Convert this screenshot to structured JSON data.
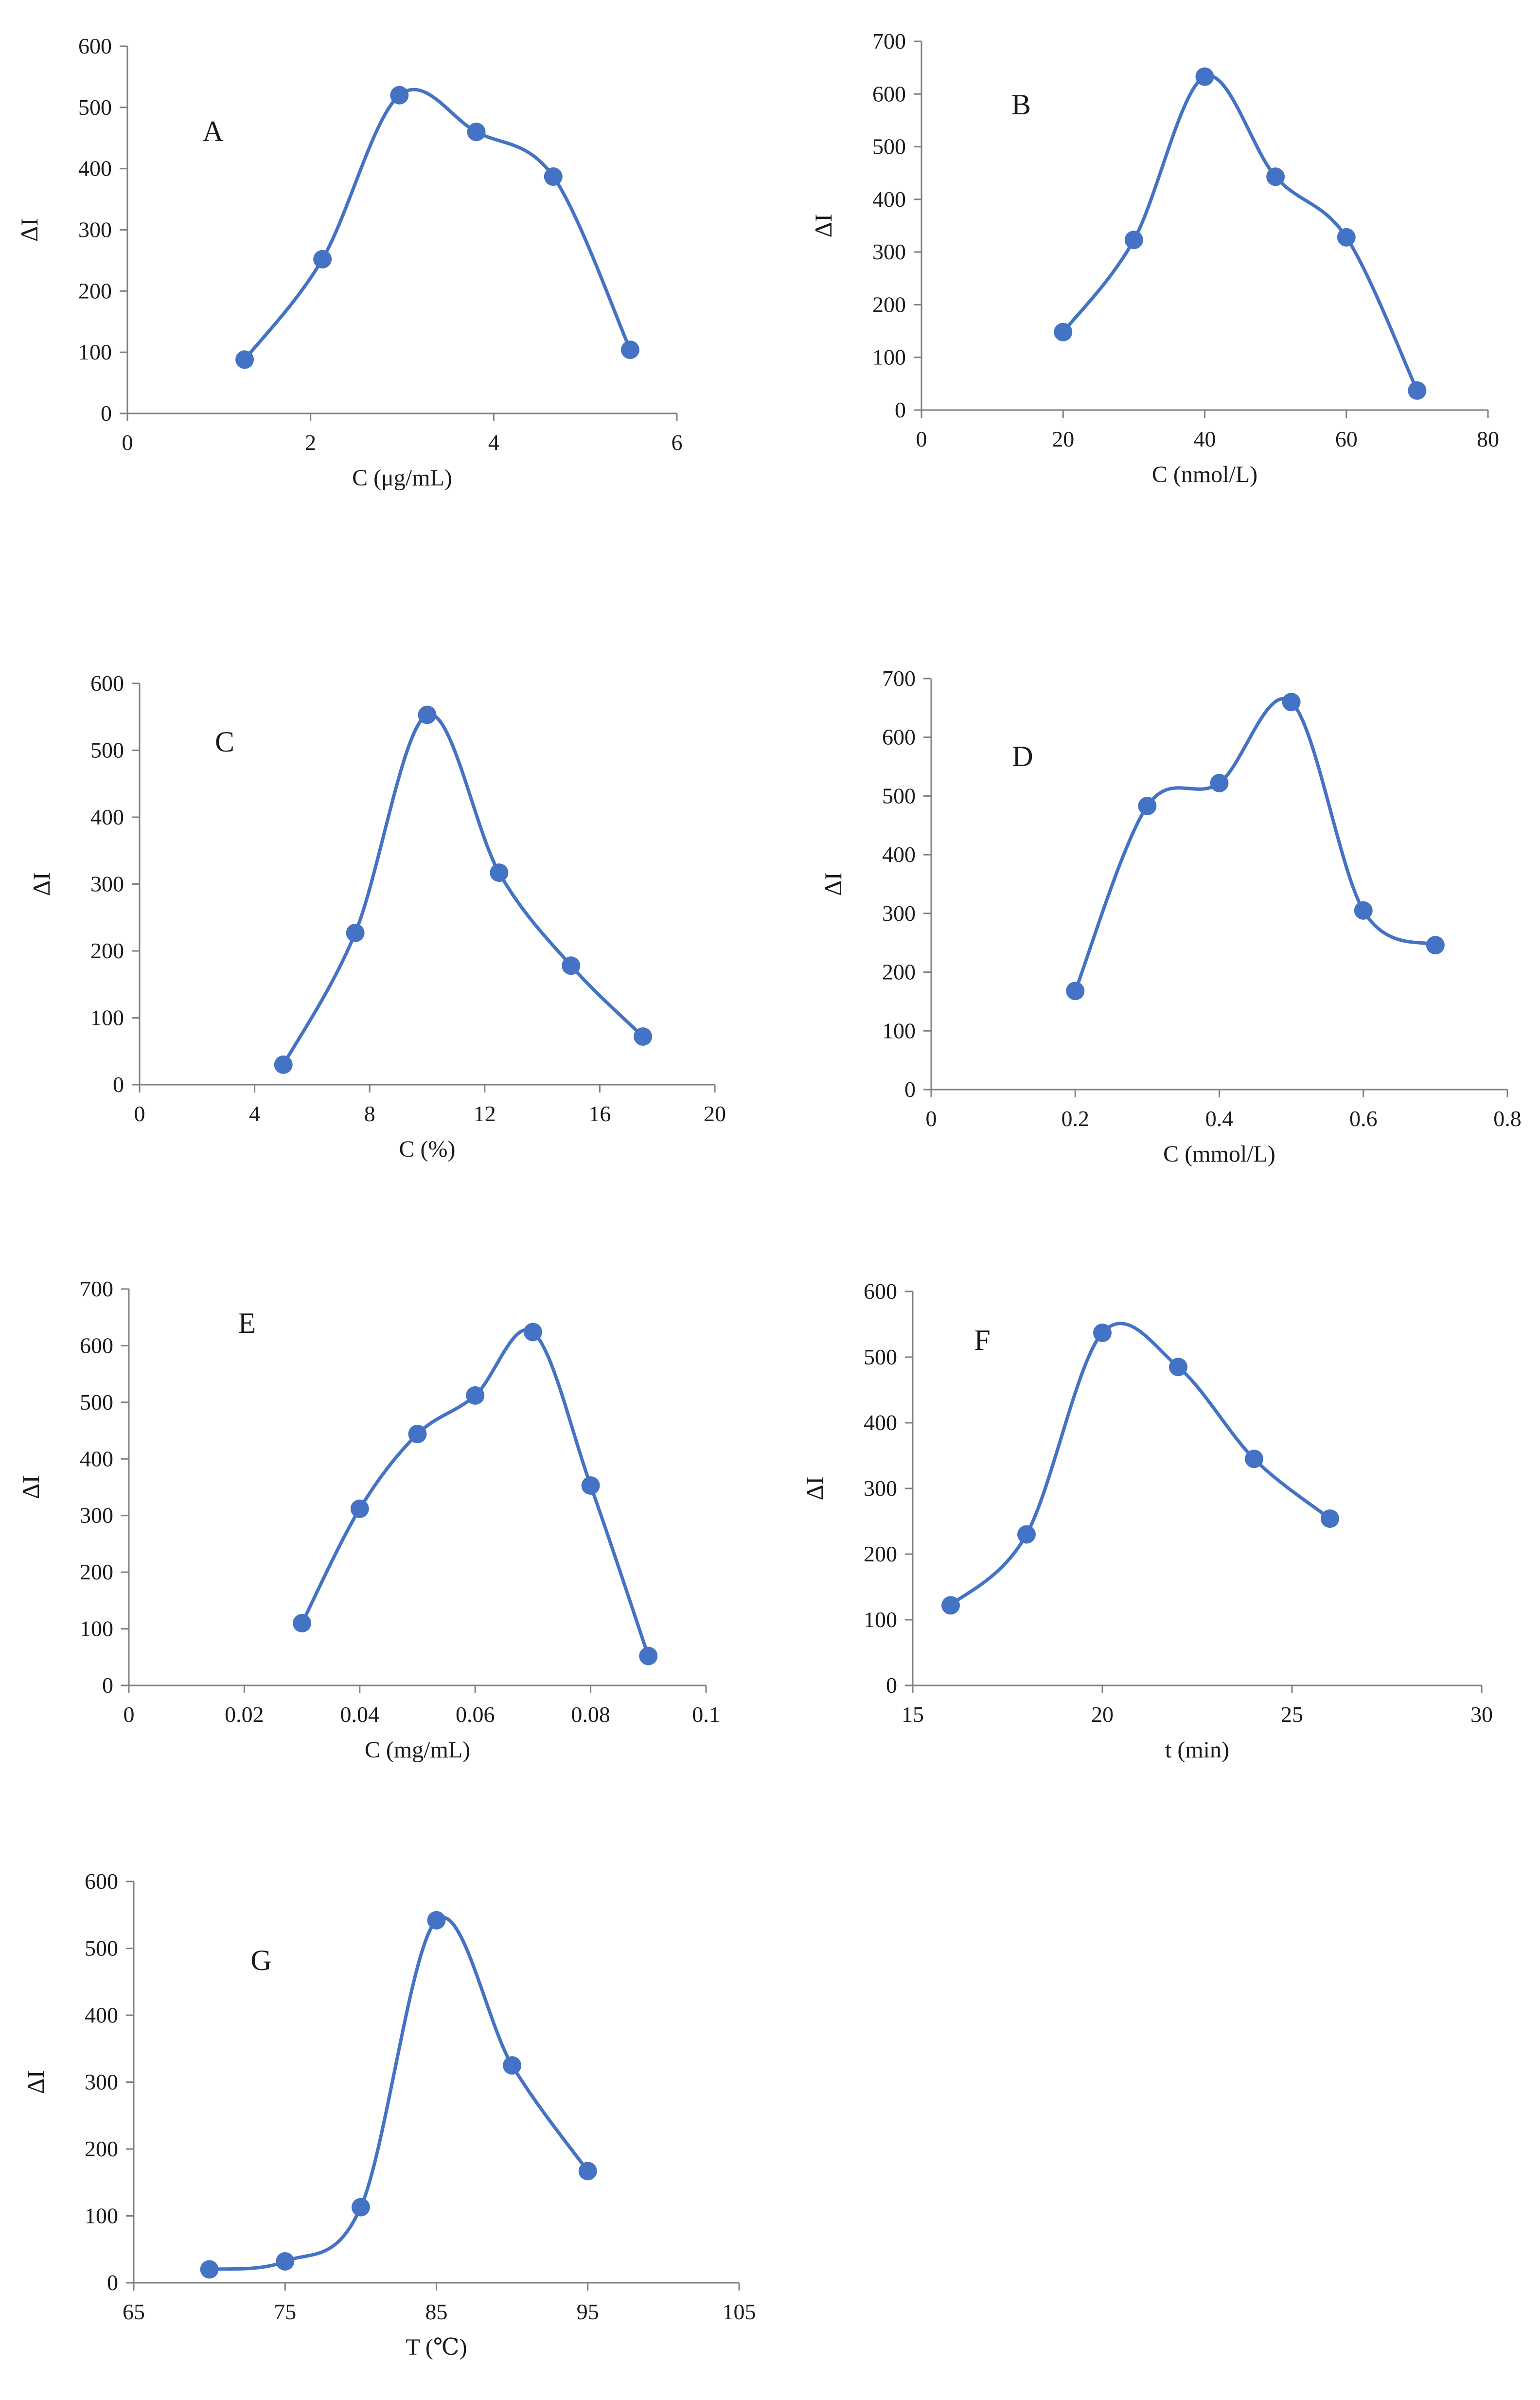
{
  "colors": {
    "series": "#4472C4",
    "axis": "#808080",
    "text": "#1a1a1a"
  },
  "chart_data": [
    {
      "type": "scatter",
      "panel_label": "A",
      "xlabel": "C (μg/mL)",
      "ylabel": "ΔI",
      "xlim": [
        0,
        6
      ],
      "ylim": [
        0,
        600
      ],
      "xticks": [
        0,
        2,
        4,
        6
      ],
      "yticks": [
        0,
        100,
        200,
        300,
        400,
        500,
        600
      ],
      "x": [
        1.28,
        2.13,
        2.97,
        3.81,
        4.65,
        5.49
      ],
      "values": [
        88,
        252,
        520,
        460,
        387,
        104
      ]
    },
    {
      "type": "scatter",
      "panel_label": "B",
      "xlabel": "C (nmol/L)",
      "ylabel": "ΔI",
      "xlim": [
        0,
        80
      ],
      "ylim": [
        0,
        700
      ],
      "xticks": [
        0,
        20,
        40,
        60,
        80
      ],
      "yticks": [
        0,
        100,
        200,
        300,
        400,
        500,
        600,
        700
      ],
      "x": [
        20,
        30,
        40,
        50,
        60,
        70
      ],
      "values": [
        148,
        323,
        633,
        443,
        328,
        37
      ]
    },
    {
      "type": "scatter",
      "panel_label": "C",
      "xlabel": "C (%)",
      "ylabel": "ΔI",
      "xlim": [
        0,
        20
      ],
      "ylim": [
        0,
        600
      ],
      "xticks": [
        0,
        4,
        8,
        12,
        16,
        20
      ],
      "yticks": [
        0,
        100,
        200,
        300,
        400,
        500,
        600
      ],
      "x": [
        5,
        7.5,
        10,
        12.5,
        15,
        17.5
      ],
      "values": [
        30,
        227,
        553,
        317,
        178,
        72
      ]
    },
    {
      "type": "scatter",
      "panel_label": "D",
      "xlabel": "C (mmol/L)",
      "ylabel": "ΔI",
      "xlim": [
        0,
        0.8
      ],
      "ylim": [
        0,
        700
      ],
      "xticks": [
        0,
        0.2,
        0.4,
        0.6,
        0.8
      ],
      "yticks": [
        0,
        100,
        200,
        300,
        400,
        500,
        600,
        700
      ],
      "x": [
        0.2,
        0.3,
        0.4,
        0.5,
        0.6,
        0.7
      ],
      "values": [
        168,
        483,
        522,
        660,
        305,
        246
      ]
    },
    {
      "type": "scatter",
      "panel_label": "E",
      "xlabel": "C (mg/mL)",
      "ylabel": "ΔI",
      "xlim": [
        0,
        0.1
      ],
      "ylim": [
        0,
        700
      ],
      "xticks": [
        0,
        0.02,
        0.04,
        0.06,
        0.08,
        0.1
      ],
      "yticks": [
        0,
        100,
        200,
        300,
        400,
        500,
        600,
        700
      ],
      "x": [
        0.03,
        0.04,
        0.05,
        0.06,
        0.07,
        0.08,
        0.09
      ],
      "values": [
        110,
        312,
        444,
        512,
        624,
        353,
        52
      ]
    },
    {
      "type": "scatter",
      "panel_label": "F",
      "xlabel": "t (min)",
      "ylabel": "ΔI",
      "xlim": [
        15,
        30
      ],
      "ylim": [
        0,
        600
      ],
      "xticks": [
        15,
        20,
        25,
        30
      ],
      "yticks": [
        0,
        100,
        200,
        300,
        400,
        500,
        600
      ],
      "x": [
        16,
        18,
        20,
        22,
        24,
        26
      ],
      "values": [
        122,
        230,
        537,
        485,
        345,
        254
      ]
    },
    {
      "type": "scatter",
      "panel_label": "G",
      "xlabel": "T (℃)",
      "ylabel": "ΔI",
      "xlim": [
        65,
        105
      ],
      "ylim": [
        0,
        600
      ],
      "xticks": [
        65,
        75,
        85,
        95,
        105
      ],
      "yticks": [
        0,
        100,
        200,
        300,
        400,
        500,
        600
      ],
      "x": [
        70,
        75,
        80,
        85,
        90,
        95
      ],
      "values": [
        20,
        32,
        113,
        542,
        325,
        167
      ]
    }
  ]
}
